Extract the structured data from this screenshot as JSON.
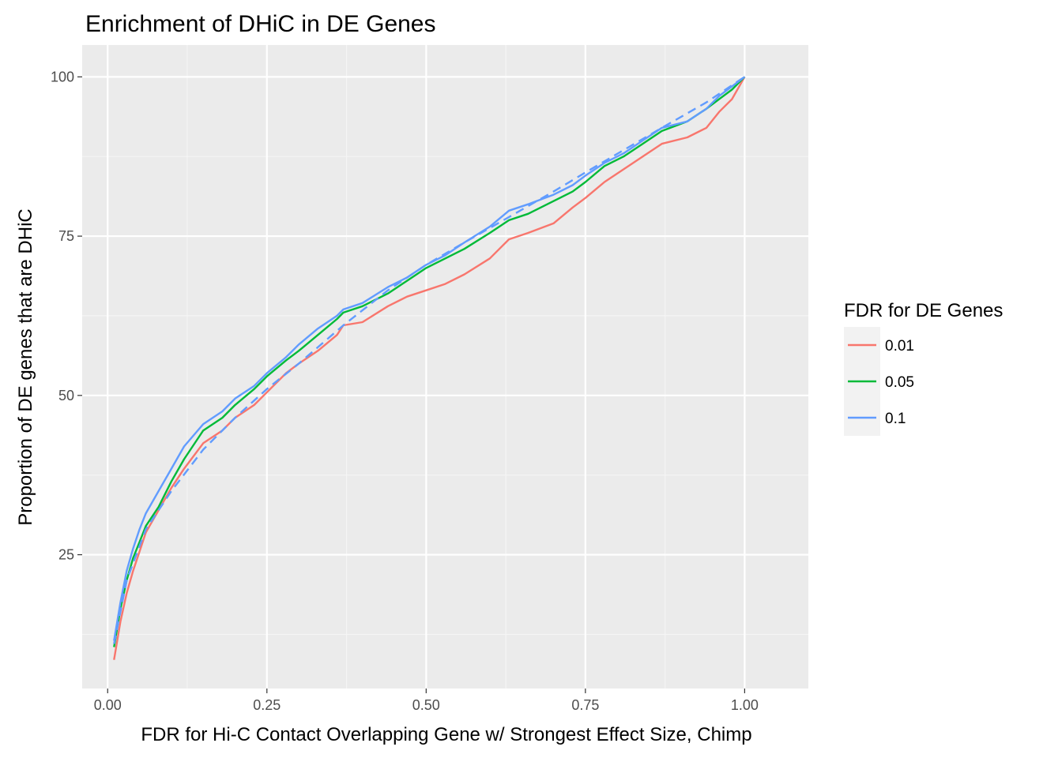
{
  "chart_data": {
    "type": "line",
    "title": "Enrichment of DHiC in DE Genes",
    "xlabel": "FDR for Hi-C Contact Overlapping Gene w/ Strongest Effect Size, Chimp",
    "ylabel": "Proportion of DE genes that are DHiC",
    "xlim": [
      -0.04,
      1.1
    ],
    "ylim": [
      4,
      105
    ],
    "x_ticks": [
      0,
      0.25,
      0.5,
      0.75,
      1
    ],
    "x_tick_labels": [
      "0.00",
      "0.25",
      "0.50",
      "0.75",
      "1.00"
    ],
    "y_ticks": [
      25,
      50,
      75,
      100
    ],
    "y_tick_labels": [
      "25",
      "50",
      "75",
      "100"
    ],
    "grid": true,
    "legend": {
      "title": "FDR for DE Genes",
      "position": "right"
    },
    "x": [
      0.01,
      0.02,
      0.03,
      0.04,
      0.05,
      0.06,
      0.08,
      0.1,
      0.12,
      0.15,
      0.18,
      0.2,
      0.23,
      0.25,
      0.28,
      0.3,
      0.33,
      0.36,
      0.37,
      0.4,
      0.44,
      0.47,
      0.5,
      0.53,
      0.56,
      0.6,
      0.63,
      0.66,
      0.7,
      0.73,
      0.75,
      0.78,
      0.81,
      0.84,
      0.87,
      0.91,
      0.94,
      0.96,
      0.98,
      1.0
    ],
    "series": [
      {
        "name": "0.01",
        "color": "#F8766D",
        "dashed": false,
        "values": [
          8.5,
          14.5,
          19.0,
          22.5,
          25.5,
          28.5,
          32.0,
          35.5,
          38.5,
          42.5,
          44.5,
          46.5,
          48.5,
          50.5,
          53.5,
          55.0,
          57.0,
          59.5,
          61.0,
          61.5,
          64.0,
          65.5,
          66.5,
          67.5,
          69.0,
          71.5,
          74.5,
          75.5,
          77.0,
          79.5,
          81.0,
          83.5,
          85.5,
          87.5,
          89.5,
          90.5,
          92.0,
          94.5,
          96.5,
          100.0
        ]
      },
      {
        "name": "0.05",
        "color": "#00BA38",
        "dashed": false,
        "values": [
          10.5,
          16.5,
          21.0,
          24.5,
          27.0,
          29.5,
          32.5,
          36.5,
          40.0,
          44.5,
          46.5,
          48.5,
          51.0,
          53.0,
          55.5,
          57.0,
          59.5,
          62.0,
          63.0,
          64.0,
          66.0,
          68.0,
          70.0,
          71.5,
          73.0,
          75.5,
          77.5,
          78.5,
          80.5,
          82.0,
          83.5,
          86.0,
          87.5,
          89.5,
          91.5,
          93.0,
          95.0,
          96.5,
          98.0,
          100.0
        ]
      },
      {
        "name": "0.1",
        "color": "#619CFF",
        "dashed": false,
        "values": [
          11.5,
          17.5,
          22.5,
          26.0,
          29.0,
          31.5,
          35.0,
          38.5,
          42.0,
          45.5,
          47.5,
          49.5,
          51.5,
          53.5,
          56.0,
          58.0,
          60.5,
          62.5,
          63.5,
          64.5,
          67.0,
          68.5,
          70.5,
          72.0,
          74.0,
          76.5,
          79.0,
          80.0,
          81.5,
          83.0,
          84.5,
          86.5,
          88.0,
          90.0,
          92.0,
          93.0,
          95.0,
          97.0,
          98.5,
          100.0
        ]
      }
    ],
    "reference_line": {
      "color": "#619CFF",
      "dashed": true,
      "x": [
        0.01,
        0.03,
        0.06,
        0.1,
        0.15,
        0.2,
        0.25,
        0.3,
        0.37,
        0.44,
        0.5,
        0.56,
        0.63,
        0.7,
        0.75,
        0.81,
        0.87,
        0.94,
        1.0
      ],
      "values": [
        11.0,
        21.0,
        29.0,
        35.0,
        41.5,
        46.5,
        51.0,
        55.0,
        61.0,
        66.5,
        70.5,
        74.0,
        78.0,
        82.0,
        85.0,
        88.5,
        92.0,
        96.0,
        100.0
      ]
    }
  }
}
